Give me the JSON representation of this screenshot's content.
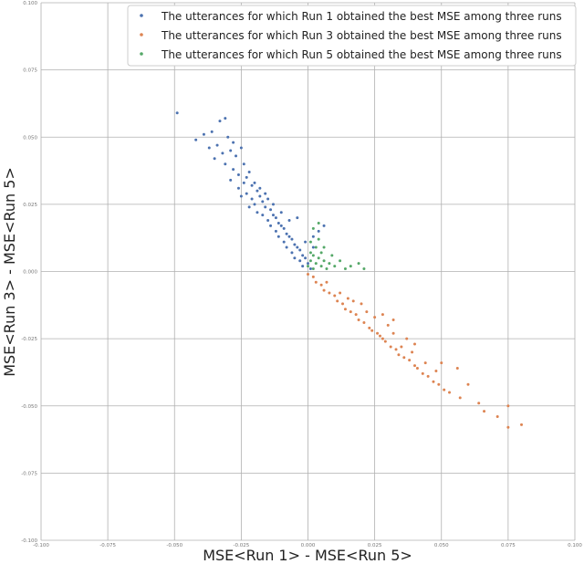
{
  "chart_data": {
    "type": "scatter",
    "title": "",
    "xlabel": "MSE<Run 1> - MSE<Run 5>",
    "ylabel": "MSE<Run 3> - MSE<Run 5>",
    "xlim": [
      -0.1,
      0.1
    ],
    "ylim": [
      -0.1,
      0.1
    ],
    "x_ticks": [
      "-0.100",
      "-0.075",
      "-0.050",
      "-0.025",
      "0.000",
      "0.025",
      "0.050",
      "0.075",
      "0.100"
    ],
    "y_ticks": [
      "-0.100",
      "-0.075",
      "-0.050",
      "-0.025",
      "0.000",
      "0.025",
      "0.050",
      "0.075",
      "0.100"
    ],
    "grid": true,
    "legend_position": "top-right",
    "series": [
      {
        "name": "The utterances for which Run 1 obtained the best MSE among three runs",
        "color": "#4c72b0",
        "points": [
          [
            -0.049,
            0.059
          ],
          [
            -0.033,
            0.056
          ],
          [
            -0.031,
            0.057
          ],
          [
            -0.042,
            0.049
          ],
          [
            -0.039,
            0.051
          ],
          [
            -0.036,
            0.052
          ],
          [
            -0.028,
            0.048
          ],
          [
            -0.03,
            0.05
          ],
          [
            -0.034,
            0.047
          ],
          [
            -0.025,
            0.046
          ],
          [
            -0.037,
            0.046
          ],
          [
            -0.032,
            0.044
          ],
          [
            -0.029,
            0.045
          ],
          [
            -0.027,
            0.043
          ],
          [
            -0.035,
            0.042
          ],
          [
            -0.024,
            0.04
          ],
          [
            -0.031,
            0.04
          ],
          [
            -0.028,
            0.038
          ],
          [
            -0.022,
            0.037
          ],
          [
            -0.026,
            0.036
          ],
          [
            -0.029,
            0.034
          ],
          [
            -0.024,
            0.033
          ],
          [
            -0.021,
            0.032
          ],
          [
            -0.026,
            0.031
          ],
          [
            -0.023,
            0.029
          ],
          [
            -0.019,
            0.03
          ],
          [
            -0.025,
            0.028
          ],
          [
            -0.021,
            0.027
          ],
          [
            -0.018,
            0.028
          ],
          [
            -0.02,
            0.025
          ],
          [
            -0.017,
            0.026
          ],
          [
            -0.022,
            0.024
          ],
          [
            -0.016,
            0.024
          ],
          [
            -0.019,
            0.022
          ],
          [
            -0.014,
            0.023
          ],
          [
            -0.017,
            0.021
          ],
          [
            -0.013,
            0.021
          ],
          [
            -0.015,
            0.019
          ],
          [
            -0.012,
            0.02
          ],
          [
            -0.011,
            0.018
          ],
          [
            -0.014,
            0.017
          ],
          [
            -0.01,
            0.017
          ],
          [
            -0.012,
            0.015
          ],
          [
            -0.009,
            0.016
          ],
          [
            -0.008,
            0.014
          ],
          [
            -0.011,
            0.013
          ],
          [
            -0.007,
            0.013
          ],
          [
            -0.009,
            0.011
          ],
          [
            -0.006,
            0.012
          ],
          [
            -0.005,
            0.01
          ],
          [
            -0.008,
            0.009
          ],
          [
            -0.004,
            0.009
          ],
          [
            -0.006,
            0.007
          ],
          [
            -0.003,
            0.008
          ],
          [
            -0.002,
            0.006
          ],
          [
            -0.005,
            0.005
          ],
          [
            -0.001,
            0.005
          ],
          [
            -0.003,
            0.004
          ],
          [
            0.0,
            0.003
          ],
          [
            -0.002,
            0.002
          ],
          [
            0.001,
            0.001
          ],
          [
            0.006,
            0.017
          ],
          [
            0.004,
            0.015
          ],
          [
            0.002,
            0.013
          ],
          [
            -0.004,
            0.02
          ],
          [
            -0.007,
            0.019
          ],
          [
            -0.01,
            0.022
          ],
          [
            -0.015,
            0.027
          ],
          [
            -0.018,
            0.031
          ],
          [
            -0.02,
            0.033
          ],
          [
            -0.013,
            0.025
          ],
          [
            -0.016,
            0.029
          ],
          [
            -0.023,
            0.035
          ],
          [
            -0.001,
            0.011
          ],
          [
            0.002,
            0.009
          ]
        ]
      },
      {
        "name": "The utterances for which Run 3 obtained the best MSE among three runs",
        "color": "#dd8452",
        "points": [
          [
            0.0,
            -0.001
          ],
          [
            0.002,
            -0.002
          ],
          [
            0.003,
            -0.004
          ],
          [
            0.005,
            -0.005
          ],
          [
            0.006,
            -0.007
          ],
          [
            0.008,
            -0.008
          ],
          [
            0.01,
            -0.009
          ],
          [
            0.011,
            -0.011
          ],
          [
            0.013,
            -0.012
          ],
          [
            0.014,
            -0.014
          ],
          [
            0.016,
            -0.015
          ],
          [
            0.018,
            -0.016
          ],
          [
            0.019,
            -0.018
          ],
          [
            0.021,
            -0.019
          ],
          [
            0.023,
            -0.021
          ],
          [
            0.024,
            -0.022
          ],
          [
            0.026,
            -0.023
          ],
          [
            0.028,
            -0.025
          ],
          [
            0.029,
            -0.026
          ],
          [
            0.031,
            -0.028
          ],
          [
            0.033,
            -0.029
          ],
          [
            0.034,
            -0.031
          ],
          [
            0.036,
            -0.032
          ],
          [
            0.038,
            -0.033
          ],
          [
            0.04,
            -0.035
          ],
          [
            0.041,
            -0.036
          ],
          [
            0.043,
            -0.038
          ],
          [
            0.045,
            -0.039
          ],
          [
            0.047,
            -0.041
          ],
          [
            0.049,
            -0.042
          ],
          [
            0.051,
            -0.044
          ],
          [
            0.053,
            -0.045
          ],
          [
            0.007,
            -0.004
          ],
          [
            0.012,
            -0.008
          ],
          [
            0.017,
            -0.011
          ],
          [
            0.022,
            -0.015
          ],
          [
            0.025,
            -0.017
          ],
          [
            0.03,
            -0.02
          ],
          [
            0.027,
            -0.024
          ],
          [
            0.032,
            -0.023
          ],
          [
            0.035,
            -0.028
          ],
          [
            0.039,
            -0.03
          ],
          [
            0.044,
            -0.034
          ],
          [
            0.048,
            -0.037
          ],
          [
            0.057,
            -0.047
          ],
          [
            0.06,
            -0.042
          ],
          [
            0.064,
            -0.049
          ],
          [
            0.066,
            -0.052
          ],
          [
            0.071,
            -0.054
          ],
          [
            0.075,
            -0.058
          ],
          [
            0.08,
            -0.057
          ],
          [
            0.075,
            -0.05
          ],
          [
            0.056,
            -0.036
          ],
          [
            0.05,
            -0.034
          ],
          [
            0.04,
            -0.027
          ],
          [
            0.037,
            -0.025
          ],
          [
            0.032,
            -0.018
          ],
          [
            0.028,
            -0.016
          ],
          [
            0.02,
            -0.012
          ],
          [
            0.015,
            -0.01
          ]
        ]
      },
      {
        "name": "The utterances for which Run 5 obtained the best MSE among three runs",
        "color": "#55a868",
        "points": [
          [
            0.0,
            0.002
          ],
          [
            0.001,
            0.004
          ],
          [
            0.002,
            0.001
          ],
          [
            0.003,
            0.003
          ],
          [
            0.001,
            0.007
          ],
          [
            0.002,
            0.006
          ],
          [
            0.003,
            0.009
          ],
          [
            0.004,
            0.005
          ],
          [
            0.005,
            0.002
          ],
          [
            0.005,
            0.007
          ],
          [
            0.006,
            0.004
          ],
          [
            0.007,
            0.001
          ],
          [
            0.008,
            0.003
          ],
          [
            0.01,
            0.002
          ],
          [
            0.012,
            0.004
          ],
          [
            0.014,
            0.001
          ],
          [
            0.016,
            0.002
          ],
          [
            0.019,
            0.003
          ],
          [
            0.021,
            0.001
          ],
          [
            0.002,
            0.016
          ],
          [
            0.004,
            0.018
          ],
          [
            0.001,
            0.011
          ],
          [
            0.006,
            0.009
          ],
          [
            0.009,
            0.006
          ],
          [
            0.004,
            0.012
          ]
        ]
      }
    ]
  }
}
